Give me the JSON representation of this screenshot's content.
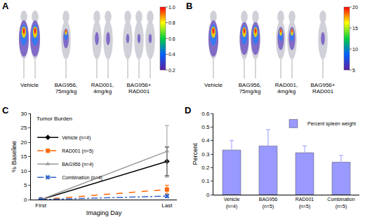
{
  "images": [
    {
      "label": "A",
      "groups": [
        "Vehicle",
        "BAG956,\n75mg/kg",
        "RAD001,\n4mg/kg",
        "BAG956+\nRAD001"
      ],
      "colorbar": {
        "range": [
          0.2,
          1.0
        ],
        "ticks": [
          {
            "value": 1,
            "label": "1.0"
          },
          0.8,
          0.6,
          0.4,
          0.2
        ]
      }
    },
    {
      "label": "B",
      "groups": [
        "Vehicle",
        "BAG956,\n75mg/kg",
        "RAD001,\n4mg/kg",
        "BAG956+\nRAD001"
      ],
      "colorbar": {
        "range": [
          5,
          20
        ],
        "ticks": [
          20,
          15,
          10,
          5
        ]
      }
    }
  ],
  "chart_data": [
    {
      "label": "C",
      "type": "line",
      "annotation": "Tumor Burden",
      "x_label": "Imaging Day",
      "y_label": "% Baseline",
      "categories": [
        "First",
        "Last"
      ],
      "series": [
        {
          "name": "Vehicle (n=4)",
          "color": "#000000",
          "marker": "diamond",
          "line_style": "solid",
          "values": [
            0,
            13.3
          ],
          "error": [
            0,
            5
          ]
        },
        {
          "name": "RAD001 (n=5)",
          "color": "#ff6600",
          "marker": "square",
          "line_style": "dash",
          "values": [
            0,
            3.5
          ],
          "error": [
            0,
            1.5
          ]
        },
        {
          "name": "BAG956 (n=4)",
          "color": "#999999",
          "marker": "triangle-up",
          "line_style": "solid",
          "values": [
            0,
            16.8
          ],
          "error": [
            0,
            9
          ]
        },
        {
          "name": "Combination (n=4)",
          "color": "#3366cc",
          "marker": "x",
          "line_style": "dashdot",
          "values": [
            0,
            1.2
          ],
          "error": [
            0,
            0.5
          ]
        }
      ],
      "ylim": [
        0,
        30
      ],
      "yticks": [
        0,
        5,
        10,
        15,
        20,
        25,
        30
      ],
      "legend": "upper left",
      "grid": false
    },
    {
      "label": "D",
      "type": "bar",
      "y_label": "Percent",
      "categories": [
        "Vehicle\n(n=4)",
        "BAG956\n(n=5)",
        "RAD001\n(n=5)",
        "Combination\n(n=5)"
      ],
      "series": [
        {
          "name": "Percent spleen weight",
          "color": "#9999ff",
          "values": [
            0.33,
            0.36,
            0.31,
            0.24
          ],
          "error": [
            0.07,
            0.12,
            0.05,
            0.05
          ]
        }
      ],
      "ylim": [
        0,
        0.6
      ],
      "yticks": [
        0,
        0.1,
        0.2,
        0.3,
        0.4,
        0.5,
        0.6
      ],
      "legend": "upper right",
      "grid": false
    }
  ]
}
